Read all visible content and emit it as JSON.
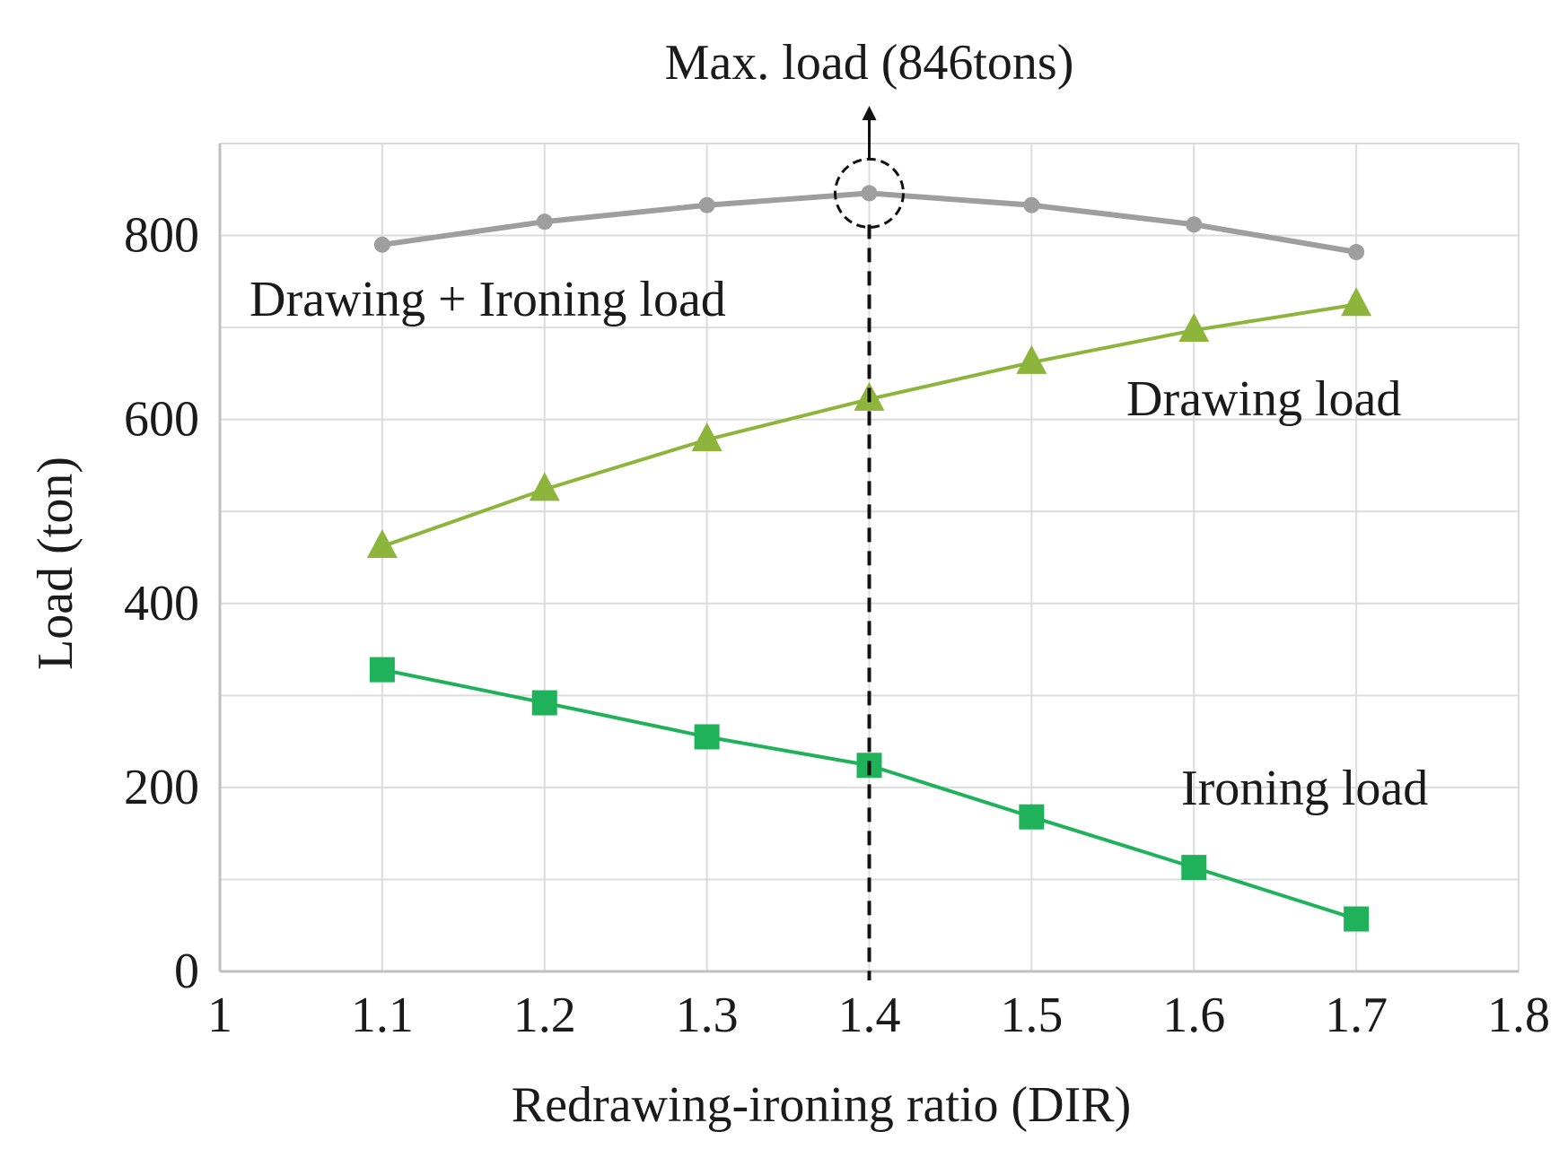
{
  "chart_data": {
    "type": "line",
    "x": [
      1.1,
      1.2,
      1.3,
      1.4,
      1.5,
      1.6,
      1.7
    ],
    "xlim": [
      1,
      1.8
    ],
    "ylim": [
      0,
      900
    ],
    "x_ticks": [
      "1",
      "1.1",
      "1.2",
      "1.3",
      "1.4",
      "1.5",
      "1.6",
      "1.7",
      "1.8"
    ],
    "y_ticks": [
      "0",
      "200",
      "400",
      "600",
      "800"
    ],
    "xlabel": "Redrawing-ironing ratio (DIR)",
    "ylabel": "Load (ton)",
    "grid": true,
    "series": [
      {
        "name": "Drawing + Ironing load",
        "marker": "circle",
        "color": "#9e9e9e",
        "values": [
          790,
          815,
          833,
          846,
          833,
          812,
          782
        ]
      },
      {
        "name": "Drawing load",
        "marker": "triangle",
        "color": "#8db53c",
        "values": [
          462,
          524,
          578,
          622,
          662,
          697,
          725
        ]
      },
      {
        "name": "Ironing load",
        "marker": "square",
        "color": "#1fb25a",
        "values": [
          328,
          292,
          255,
          224,
          168,
          113,
          57
        ]
      }
    ],
    "annotation": {
      "text": "Max. load (846tons)",
      "x": 1.4,
      "y": 846
    }
  }
}
